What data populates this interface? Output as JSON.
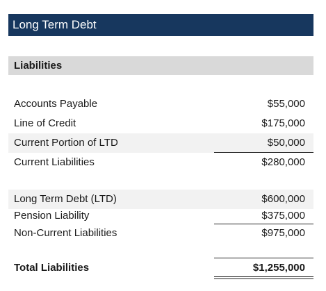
{
  "title": "Long Term Debt",
  "section": "Liabilities",
  "current": [
    {
      "label": "Accounts Payable",
      "value": "$55,000"
    },
    {
      "label": "Line of Credit",
      "value": "$175,000"
    },
    {
      "label": "Current Portion of LTD",
      "value": "$50,000"
    }
  ],
  "current_total": {
    "label": "Current Liabilities",
    "value": "$280,000"
  },
  "noncurrent": [
    {
      "label": "Long Term Debt (LTD)",
      "value": "$600,000"
    },
    {
      "label": "Pension Liability",
      "value": "$375,000"
    }
  ],
  "noncurrent_total": {
    "label": "Non-Current Liabilities",
    "value": "$975,000"
  },
  "total": {
    "label": "Total Liabilities",
    "value": "$1,255,000"
  },
  "colors": {
    "title_bg": "#17375e",
    "section_bg": "#d9d9d9",
    "row_shade": "#f2f2f2"
  }
}
